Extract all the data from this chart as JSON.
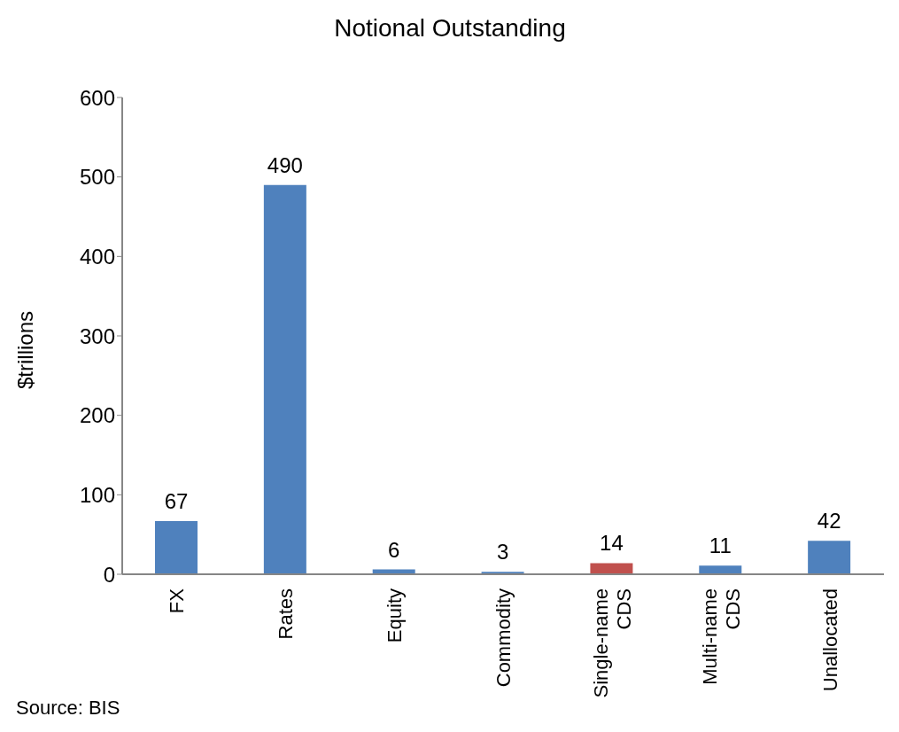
{
  "chart_data": {
    "type": "bar",
    "title": "Notional Outstanding",
    "ylabel": "$trillions",
    "categories": [
      "FX",
      "Rates",
      "Equity",
      "Commodity",
      "Single-name CDS",
      "Multi-name CDS",
      "Unallocated"
    ],
    "values": [
      67,
      490,
      6,
      3,
      14,
      11,
      42
    ],
    "colors": [
      "#4f81bd",
      "#4f81bd",
      "#4f81bd",
      "#4f81bd",
      "#c0504d",
      "#4f81bd",
      "#4f81bd"
    ],
    "ylim": [
      0,
      600
    ],
    "yticks": [
      0,
      100,
      200,
      300,
      400,
      500,
      600
    ],
    "data_labels": true,
    "annotations": [
      "Source: BIS"
    ]
  }
}
